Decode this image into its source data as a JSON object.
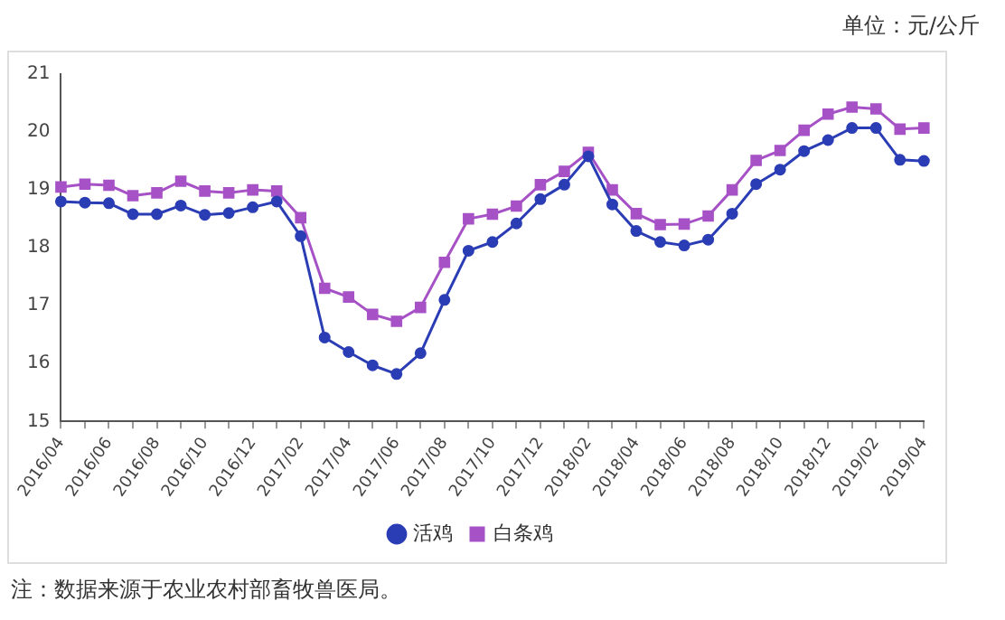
{
  "chart_data": {
    "type": "line",
    "ylabel": "单位：元/公斤",
    "annotations": [
      "注：数据来源于农业农村部畜牧兽医局。"
    ],
    "categories": [
      "2016/04",
      null,
      "2016/06",
      null,
      "2016/08",
      null,
      "2016/10",
      null,
      "2016/12",
      null,
      "2017/02",
      null,
      "2017/04",
      null,
      "2017/06",
      null,
      "2017/08",
      null,
      "2017/10",
      null,
      "2017/12",
      null,
      "2018/02",
      null,
      "2018/04",
      null,
      "2018/06",
      null,
      "2018/08",
      null,
      "2018/10",
      null,
      "2018/12",
      null,
      "2019/02",
      null,
      "2019/04"
    ],
    "series": [
      {
        "name": "活鸡",
        "color": "#2b3db5",
        "marker": "circle",
        "values": [
          18.8,
          18.78,
          18.77,
          18.58,
          18.58,
          18.73,
          18.57,
          18.6,
          18.7,
          18.8,
          18.2,
          16.45,
          16.2,
          15.97,
          15.82,
          16.18,
          17.1,
          17.95,
          18.1,
          18.42,
          18.84,
          19.09,
          19.58,
          18.75,
          18.29,
          18.1,
          18.04,
          18.14,
          18.59,
          19.1,
          19.35,
          19.67,
          19.86,
          20.07,
          20.07,
          19.52,
          19.5
        ]
      },
      {
        "name": "白条鸡",
        "color": "#a652c6",
        "marker": "square",
        "values": [
          19.05,
          19.1,
          19.08,
          18.9,
          18.95,
          19.15,
          18.98,
          18.95,
          19.0,
          18.98,
          18.52,
          17.3,
          17.15,
          16.85,
          16.73,
          16.97,
          17.75,
          18.5,
          18.58,
          18.72,
          19.09,
          19.32,
          19.65,
          19.0,
          18.59,
          18.4,
          18.41,
          18.55,
          19.0,
          19.51,
          19.68,
          20.03,
          20.31,
          20.43,
          20.4,
          20.05,
          20.07
        ]
      }
    ],
    "ylim": [
      15,
      21
    ],
    "yticks": [
      15,
      16,
      17,
      18,
      19,
      20,
      21
    ],
    "grid": false,
    "legend": "bottom",
    "line_style": "solid"
  }
}
